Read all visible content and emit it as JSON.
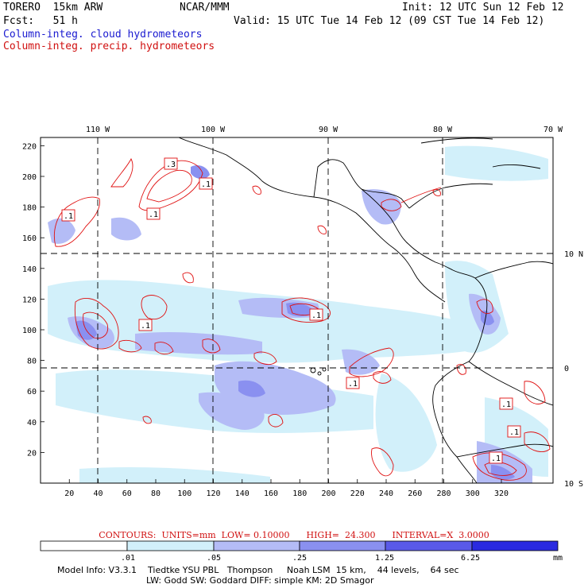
{
  "header": {
    "model": "TORERO  15km ARW",
    "org": "NCAR/MMM",
    "init": "Init: 12 UTC Sun 12 Feb 12",
    "fcst": "Fcst:   51 h",
    "valid": "Valid: 15 UTC Tue 14 Feb 12 (09 CST Tue 14 Feb 12)",
    "field1": "Column-integ. cloud hydrometeors",
    "field2": "Column-integ. precip. hydrometeors"
  },
  "colors": {
    "cloud_text": "#1a1ad0",
    "precip_text": "#d01010",
    "contour": "#e01010",
    "fill_levels": [
      "#ffffff",
      "#d2f0fa",
      "#b4bcf6",
      "#8a90f0",
      "#5a5ae8",
      "#2a2ae0"
    ]
  },
  "axes": {
    "x_ticks": [
      "20",
      "40",
      "60",
      "80",
      "100",
      "120",
      "140",
      "160",
      "180",
      "200",
      "220",
      "240",
      "260",
      "280",
      "300",
      "320"
    ],
    "y_ticks": [
      "20",
      "40",
      "60",
      "80",
      "100",
      "120",
      "140",
      "160",
      "180",
      "200",
      "220"
    ],
    "lon_labels": [
      "110 W",
      "100 W",
      "90 W",
      "80 W",
      "70 W"
    ],
    "lat_labels": [
      "10 N",
      "0",
      "10 S"
    ]
  },
  "contour_labels": [
    ".3",
    ".1",
    ".1",
    ".1",
    ".1",
    ".1",
    ".1",
    ".1",
    ".1",
    ".1"
  ],
  "contour_info": "CONTOURS:  UNITS=mm  LOW= 0.10000      HIGH=  24.300      INTERVAL=X  3.0000",
  "colorbar": {
    "labels": [
      ".01",
      ".05",
      ".25",
      "1.25",
      "6.25"
    ],
    "units": "mm"
  },
  "model_info": {
    "line1": "Model Info: V3.3.1    Tiedtke YSU PBL   Thompson     Noah LSM  15 km,    44 levels,    64 sec",
    "line2": "LW: Godd SW: Goddard DIFF: simple KM: 2D Smagor"
  }
}
